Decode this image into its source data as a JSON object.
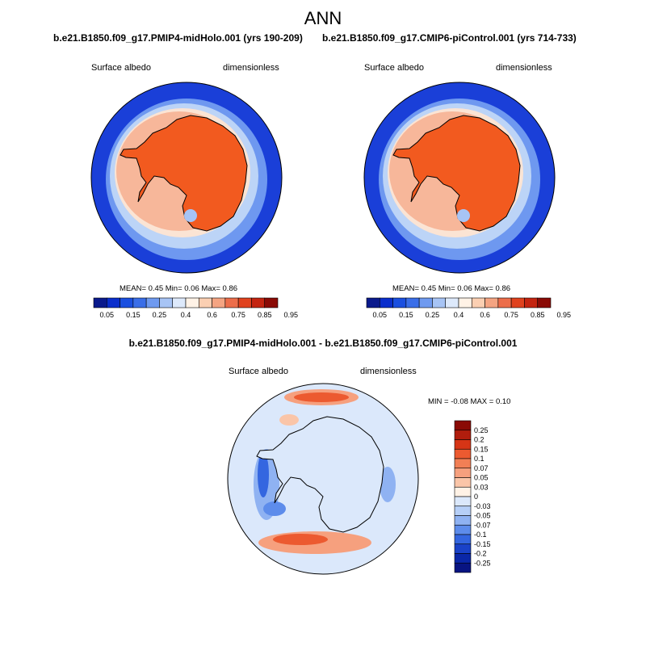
{
  "header": {
    "season": "ANN",
    "case_a": "b.e21.B1850.f09_g17.PMIP4-midHolo.001 (yrs 190-209)",
    "case_b": "b.e21.B1850.f09_g17.CMIP6-piControl.001 (yrs 714-733)",
    "diff_title": "b.e21.B1850.f09_g17.PMIP4-midHolo.001 - b.e21.B1850.f09_g17.CMIP6-piControl.001"
  },
  "panels": [
    {
      "variable": "Surface albedo",
      "units": "dimensionless",
      "stats": "MEAN=   0.45  Min=   0.06  Max=   0.86"
    },
    {
      "variable": "Surface albedo",
      "units": "dimensionless",
      "stats": "MEAN=   0.45  Min=   0.06  Max=   0.86"
    },
    {
      "variable": "Surface albedo",
      "units": "dimensionless",
      "stats": "MIN =  -0.08 MAX =   0.10"
    }
  ],
  "colorbar_abs": {
    "labels": [
      "0.05",
      "0.15",
      "0.25",
      "0.4",
      "0.6",
      "0.75",
      "0.85",
      "0.95"
    ],
    "colors": [
      "#0a1a8c",
      "#0a2ecc",
      "#1a4fe0",
      "#3a6ee8",
      "#6f9af0",
      "#a7c4f5",
      "#dde9fb",
      "#fff2e6",
      "#fbcfb2",
      "#f4a482",
      "#ec6d4a",
      "#e0421e",
      "#c42410",
      "#8a0a05"
    ]
  },
  "colorbar_diff": {
    "labels": [
      "0.25",
      "0.2",
      "0.15",
      "0.1",
      "0.07",
      "0.05",
      "0.03",
      "0",
      "-0.03",
      "-0.05",
      "-0.07",
      "-0.1",
      "-0.15",
      "-0.2",
      "-0.25"
    ],
    "colors": [
      "#8a0a05",
      "#b01d0d",
      "#d63516",
      "#ec5a30",
      "#f27f55",
      "#f6a07e",
      "#fac5a8",
      "#fff2e6",
      "#dbe8fb",
      "#b6cff7",
      "#8fb2f2",
      "#5d8ceb",
      "#3466e0",
      "#1a42c8",
      "#0a27a8",
      "#081482"
    ]
  }
}
